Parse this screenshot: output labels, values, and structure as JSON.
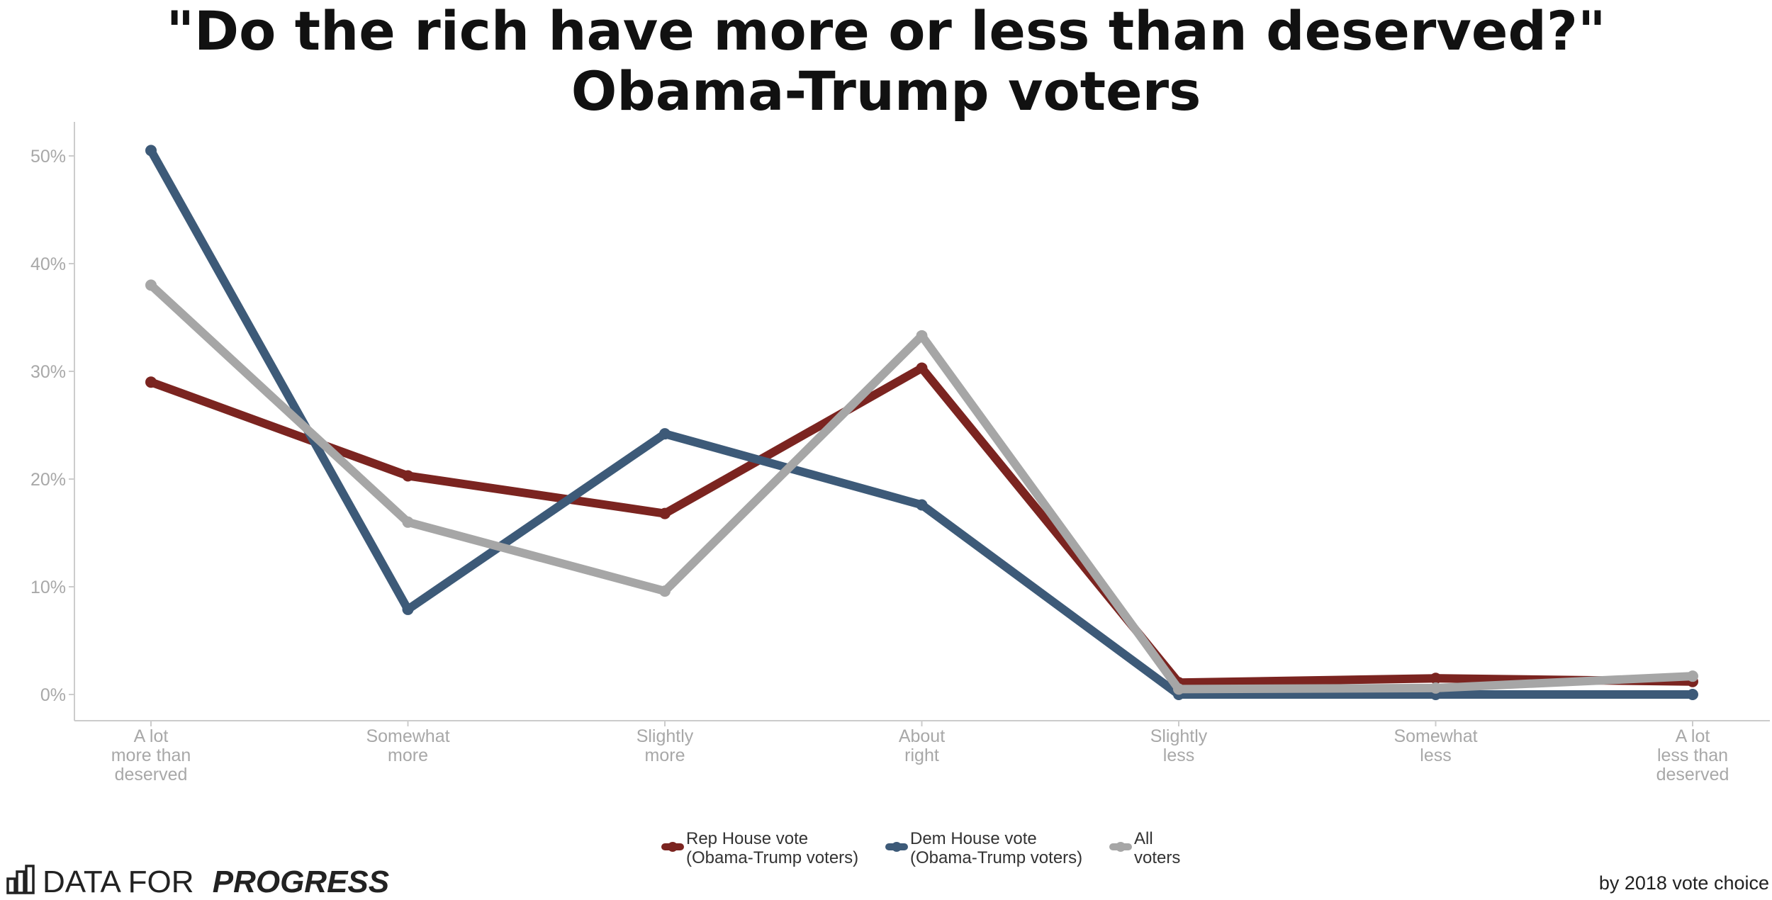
{
  "chart_data": {
    "type": "line",
    "title": "\"Do the rich have more or less than deserved?\"",
    "subtitle": "Obama-Trump voters",
    "xlabel": "",
    "ylabel": "",
    "categories": [
      [
        "A lot",
        "more than",
        "deserved"
      ],
      [
        "Somewhat",
        "more"
      ],
      [
        "Slightly",
        "more"
      ],
      [
        "About",
        "right"
      ],
      [
        "Slightly",
        "less"
      ],
      [
        "Somewhat",
        "less"
      ],
      [
        "A lot",
        "less than",
        "deserved"
      ]
    ],
    "ylim": [
      0,
      52
    ],
    "yticks": [
      0,
      10,
      20,
      30,
      40,
      50
    ],
    "ytick_labels": [
      "0%",
      "10%",
      "20%",
      "30%",
      "40%",
      "50%"
    ],
    "grid": false,
    "legend_position": "bottom",
    "series": [
      {
        "name": "Rep House vote (Obama-Trump voters)",
        "legend_lines": [
          "Rep House vote",
          "(Obama-Trump voters)"
        ],
        "color": "#7b2420",
        "values": [
          29.0,
          20.3,
          16.8,
          30.3,
          1.1,
          1.5,
          1.2
        ]
      },
      {
        "name": "Dem House vote (Obama-Trump voters)",
        "legend_lines": [
          "Dem House vote",
          "(Obama-Trump voters)"
        ],
        "color": "#3d5a78",
        "values": [
          50.5,
          7.9,
          24.2,
          17.6,
          0.0,
          0.0,
          0.0
        ]
      },
      {
        "name": "All voters",
        "legend_lines": [
          "All",
          "voters"
        ],
        "color": "#a6a6a6",
        "values": [
          38.0,
          16.0,
          9.6,
          33.3,
          0.5,
          0.6,
          1.7
        ]
      }
    ]
  },
  "branding": {
    "logo_icon": "bar-chart-icon",
    "name_plain": "DATA FOR",
    "name_emphasis": "PROGRESS"
  },
  "caption": "by 2018 vote choice"
}
